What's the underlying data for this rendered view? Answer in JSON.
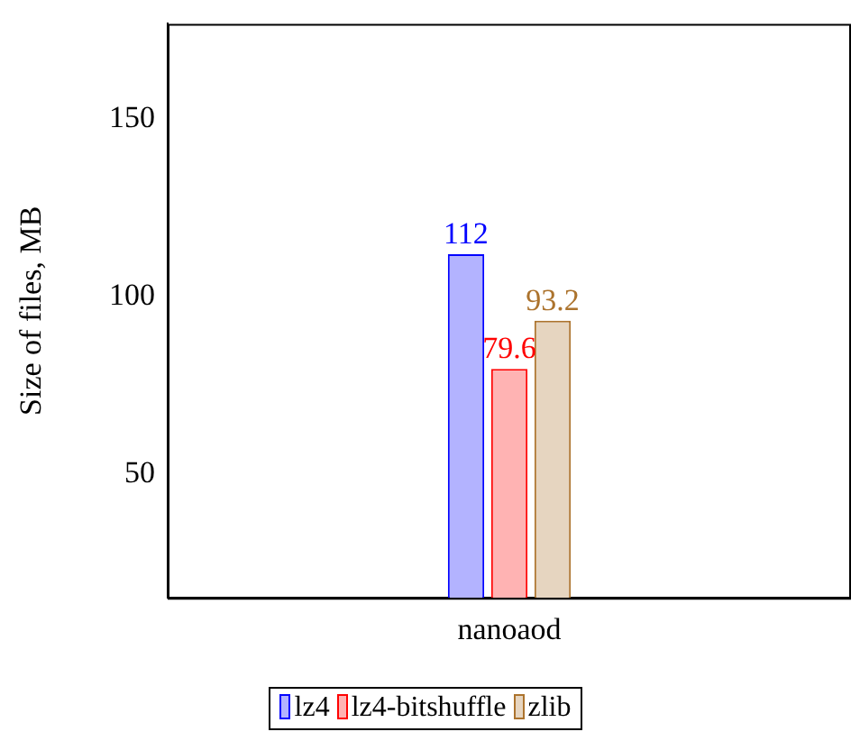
{
  "chart_data": {
    "type": "bar",
    "ylabel": "Size of files, MB",
    "categories": [
      "nanoaod"
    ],
    "series": [
      {
        "name": "lz4",
        "color": "#b3b3ff",
        "values": [
          112
        ]
      },
      {
        "name": "lz4-bitshuffle",
        "color": "#ffb3b3",
        "values": [
          79.6
        ]
      },
      {
        "name": "zlib",
        "color": "#e6d5c0",
        "values": [
          93.2
        ]
      }
    ],
    "ylim": [
      15,
      177
    ],
    "yticks": [
      50,
      100,
      150
    ],
    "grid": false,
    "legend": "bottom",
    "data_labels": true
  }
}
